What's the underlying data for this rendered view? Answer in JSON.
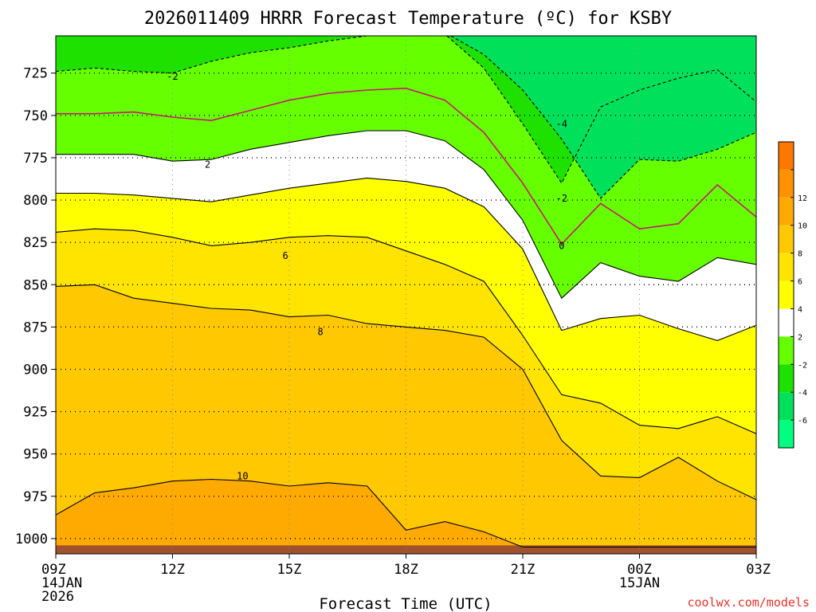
{
  "chart_data": {
    "type": "contour",
    "title": "2026011409 HRRR Forecast Temperature (ºC) for KSBY",
    "xlabel": "Forecast Time (UTC)",
    "ylabel": "",
    "x_hours": [
      0,
      1,
      2,
      3,
      4,
      5,
      6,
      7,
      8,
      9,
      10,
      11,
      12,
      13,
      14,
      15,
      16,
      17,
      18
    ],
    "x_ticks": [
      {
        "hour": 0,
        "label": "09Z",
        "sub1": "14JAN",
        "sub2": "2026"
      },
      {
        "hour": 3,
        "label": "12Z",
        "sub1": "",
        "sub2": ""
      },
      {
        "hour": 6,
        "label": "15Z",
        "sub1": "",
        "sub2": ""
      },
      {
        "hour": 9,
        "label": "18Z",
        "sub1": "",
        "sub2": ""
      },
      {
        "hour": 12,
        "label": "21Z",
        "sub1": "",
        "sub2": ""
      },
      {
        "hour": 15,
        "label": "00Z",
        "sub1": "15JAN",
        "sub2": ""
      },
      {
        "hour": 18,
        "label": "03Z",
        "sub1": "",
        "sub2": ""
      }
    ],
    "y_ticks": [
      725,
      750,
      775,
      800,
      825,
      850,
      875,
      900,
      925,
      950,
      975,
      1000
    ],
    "ylim_hPa": [
      1009,
      703
    ],
    "colorbar": {
      "levels": [
        -8,
        -6,
        -4,
        -2,
        2,
        4,
        6,
        8,
        10,
        12,
        14,
        16
      ],
      "colors": [
        "#00ff80",
        "#00e05a",
        "#1ee100",
        "#66ff00",
        "#ffffff",
        "#ffff00",
        "#ffe400",
        "#ffc800",
        "#ffaa00",
        "#ff9000",
        "#ff7800"
      ],
      "tick_labels": [
        "-6",
        "-4",
        "-2",
        "2",
        "4",
        "6",
        "8",
        "10",
        "12"
      ]
    },
    "isotherms": [
      {
        "value": -4,
        "label": "-4",
        "hPa": [
          701,
          701,
          701,
          701,
          701,
          701,
          701,
          701,
          701,
          701,
          701,
          714,
          735,
          764,
          799,
          776,
          777,
          770,
          760
        ]
      },
      {
        "value": -2,
        "label": "-2",
        "hPa": [
          724,
          722,
          724,
          725,
          718,
          713,
          710,
          706,
          703,
          703,
          702,
          722,
          755,
          790,
          745,
          735,
          728,
          723,
          742
        ]
      },
      {
        "value": 0,
        "label": "0",
        "hPa": [
          749,
          749,
          748,
          751,
          753,
          747,
          741,
          737,
          735,
          734,
          741,
          760,
          790,
          826,
          802,
          817,
          814,
          791,
          810
        ]
      },
      {
        "value": 2,
        "label": "2",
        "hPa": [
          773,
          773,
          773,
          777,
          776,
          770,
          766,
          762,
          759,
          759,
          765,
          782,
          812,
          858,
          837,
          845,
          848,
          834,
          838
        ]
      },
      {
        "value": 4,
        "label": "4",
        "hPa": [
          796,
          796,
          797,
          799,
          801,
          797,
          793,
          790,
          787,
          789,
          793,
          804,
          829,
          877,
          870,
          868,
          876,
          883,
          874
        ]
      },
      {
        "value": 6,
        "label": "6",
        "hPa": [
          819,
          817,
          818,
          822,
          827,
          825,
          822,
          821,
          822,
          830,
          838,
          848,
          880,
          915,
          920,
          933,
          935,
          928,
          938
        ]
      },
      {
        "value": 8,
        "label": "8",
        "hPa": [
          851,
          850,
          858,
          861,
          864,
          865,
          869,
          868,
          873,
          875,
          877,
          881,
          900,
          942,
          963,
          964,
          952,
          966,
          977
        ]
      },
      {
        "value": 10,
        "label": "10",
        "hPa": [
          986,
          973,
          970,
          966,
          965,
          966,
          969,
          967,
          969,
          995,
          990,
          996,
          1005,
          1005,
          1005,
          1005,
          1005,
          1005,
          1005
        ]
      }
    ],
    "annotations": [
      {
        "text": "-2",
        "hour": 3.0,
        "hPa": 727
      },
      {
        "text": "2",
        "hour": 3.9,
        "hPa": 779
      },
      {
        "text": "6",
        "hour": 5.9,
        "hPa": 833
      },
      {
        "text": "8",
        "hour": 6.8,
        "hPa": 878
      },
      {
        "text": "10",
        "hour": 4.8,
        "hPa": 963
      },
      {
        "text": "-4",
        "hour": 13.0,
        "hPa": 755
      },
      {
        "text": "-2",
        "hour": 13.0,
        "hPa": 799
      },
      {
        "text": "0",
        "hour": 13.0,
        "hPa": 827
      }
    ],
    "credit": "coolwx.com/models"
  }
}
